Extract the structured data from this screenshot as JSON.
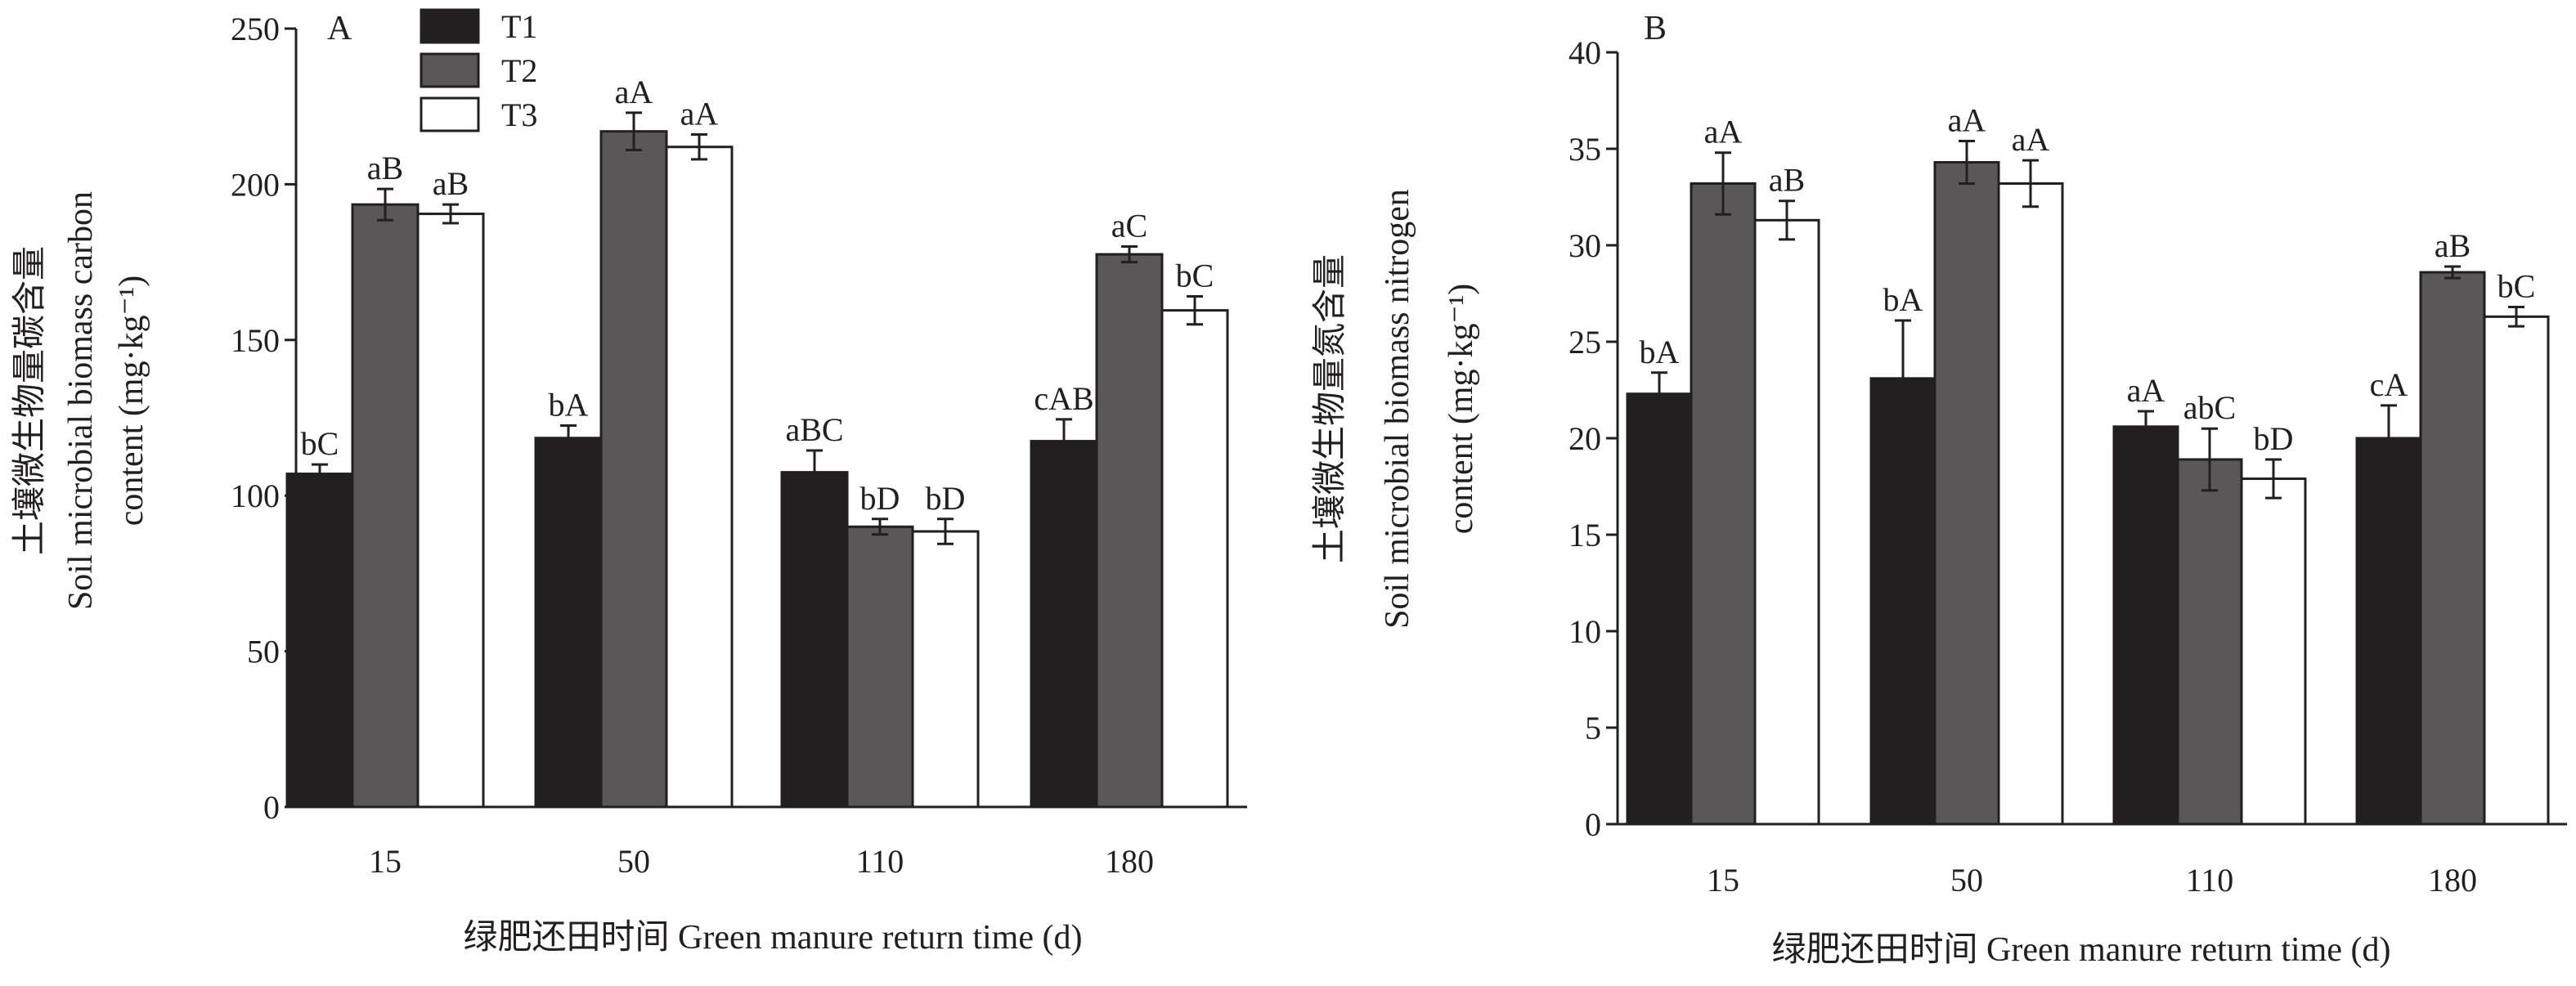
{
  "chart_data": [
    {
      "type": "bar",
      "panel": "A",
      "categories": [
        "15",
        "50",
        "110",
        "180"
      ],
      "series": [
        {
          "name": "T1",
          "values": [
            107,
            118.5,
            107.5,
            117.5
          ],
          "errors": [
            3,
            4,
            7,
            7
          ],
          "labels": [
            "bC",
            "bA",
            "aBC",
            "cAB"
          ]
        },
        {
          "name": "T2",
          "values": [
            193.5,
            217,
            90,
            177.5
          ],
          "errors": [
            5,
            6,
            2.5,
            2.5
          ],
          "labels": [
            "aB",
            "aA",
            "bD",
            "aC"
          ]
        },
        {
          "name": "T3",
          "values": [
            190.5,
            212,
            88.5,
            159.5
          ],
          "errors": [
            3,
            4,
            4,
            4.5
          ],
          "labels": [
            "aB",
            "aA",
            "bD",
            "bC"
          ]
        }
      ],
      "xlabel": "绿肥还田时间 Green manure return time (d)",
      "ylabel_lines": [
        "土壤微生物量碳含量",
        "Soil microbial biomass carbon",
        "content (mg·kg⁻¹)"
      ],
      "ylim": [
        0,
        250
      ],
      "yticks": [
        "0",
        "50",
        "100",
        "150",
        "200",
        "250"
      ],
      "grid": false,
      "legend_position": "top-left"
    },
    {
      "type": "bar",
      "panel": "B",
      "categories": [
        "15",
        "50",
        "110",
        "180"
      ],
      "series": [
        {
          "name": "T1",
          "values": [
            22.3,
            23.1,
            20.6,
            20.0
          ],
          "errors": [
            1.1,
            3.0,
            0.8,
            1.7
          ],
          "labels": [
            "bA",
            "bA",
            "aA",
            "cA"
          ]
        },
        {
          "name": "T2",
          "values": [
            33.2,
            34.3,
            18.9,
            28.6
          ],
          "errors": [
            1.6,
            1.1,
            1.6,
            0.3
          ],
          "labels": [
            "aA",
            "aA",
            "abC",
            "aB"
          ]
        },
        {
          "name": "T3",
          "values": [
            31.3,
            33.2,
            17.9,
            26.3
          ],
          "errors": [
            1.0,
            1.2,
            1.0,
            0.5
          ],
          "labels": [
            "aB",
            "aA",
            "bD",
            "bC"
          ]
        }
      ],
      "xlabel": "绿肥还田时间 Green manure return time (d)",
      "ylabel_lines": [
        "土壤微生物量氮含量",
        "Soil microbial biomass nitrogen",
        "content (mg·kg⁻¹)"
      ],
      "ylim": [
        0,
        40
      ],
      "yticks": [
        "0",
        "5",
        "10",
        "15",
        "20",
        "25",
        "30",
        "35",
        "40"
      ],
      "grid": false
    }
  ],
  "colors": {
    "T1": "#231f20",
    "T2": "#595757",
    "T3": "#ffffff",
    "outline": "#231f20"
  }
}
